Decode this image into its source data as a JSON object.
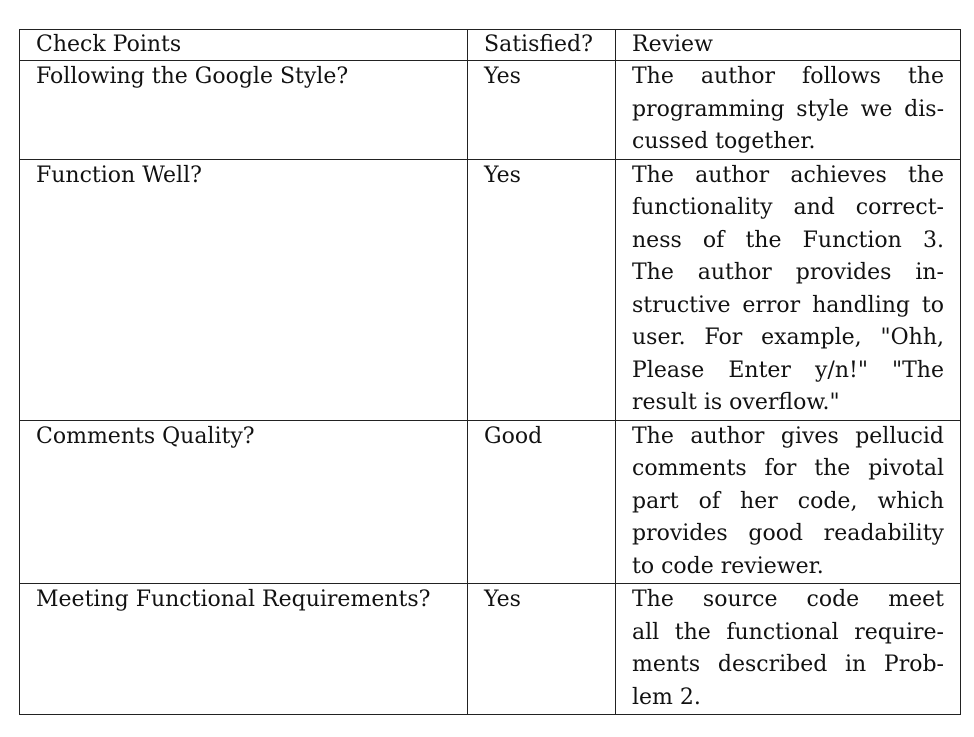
{
  "table": {
    "headers": {
      "check_points": "Check Points",
      "satisfied": "Satisfied?",
      "review": "Review"
    },
    "rows": [
      {
        "check_point": "Following the Google Style?",
        "satisfied": "Yes",
        "review_lines": [
          "The author follows the",
          "programming style we dis-",
          "cussed together."
        ]
      },
      {
        "check_point": "Function Well?",
        "satisfied": "Yes",
        "review_lines": [
          "The author achieves the",
          "functionality and correct-",
          "ness of the Function 3.",
          "The author provides in-",
          "structive error handling to",
          "user. For example, \"Ohh,",
          "Please Enter y/n!\" \"The",
          "result is overflow.\""
        ]
      },
      {
        "check_point": "Comments Quality?",
        "satisfied": "Good",
        "review_lines": [
          "The author gives pellucid",
          "comments for the pivotal",
          "part of her code, which",
          "provides good readability",
          "to code reviewer."
        ]
      },
      {
        "check_point": "Meeting Functional Requirements?",
        "satisfied": "Yes",
        "review_lines": [
          "The source code meet",
          "all the functional require-",
          "ments described in Prob-",
          "lem 2."
        ]
      }
    ]
  }
}
